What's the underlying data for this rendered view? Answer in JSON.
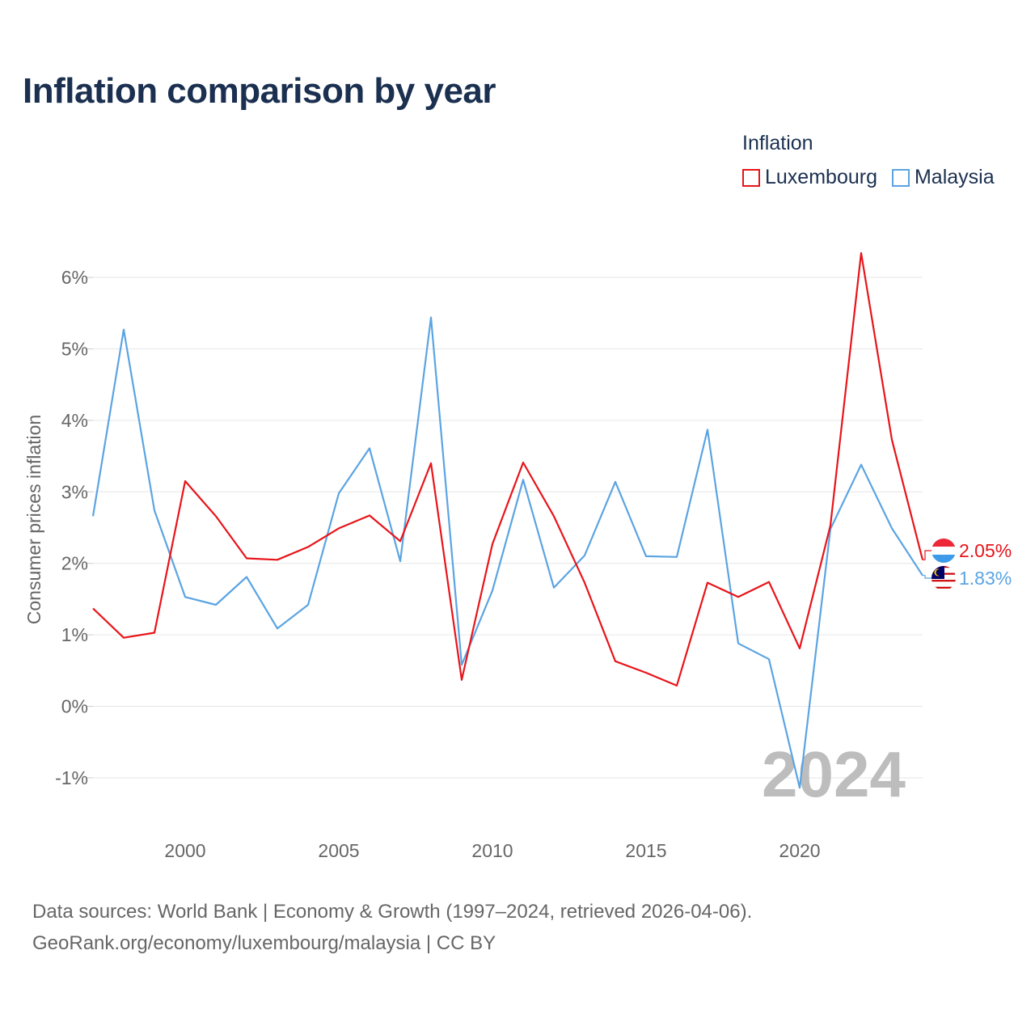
{
  "title": "Inflation comparison by year",
  "legend": {
    "title": "Inflation",
    "items": [
      {
        "name": "Luxembourg",
        "color": "#e8141a"
      },
      {
        "name": "Malaysia",
        "color": "#5ba4e2"
      }
    ]
  },
  "chart_data": {
    "type": "line",
    "title": "Inflation comparison by year",
    "xlabel": "",
    "ylabel": "Consumer prices inflation",
    "x": [
      1997,
      1998,
      1999,
      2000,
      2001,
      2002,
      2003,
      2004,
      2005,
      2006,
      2007,
      2008,
      2009,
      2010,
      2011,
      2012,
      2013,
      2014,
      2015,
      2016,
      2017,
      2018,
      2019,
      2020,
      2021,
      2022,
      2023,
      2024
    ],
    "xlim": [
      1997,
      2024
    ],
    "ylim": [
      -1.6,
      6.6
    ],
    "x_ticks": [
      2000,
      2005,
      2010,
      2015,
      2020
    ],
    "x_tick_labels": [
      "2000",
      "2005",
      "2010",
      "2015",
      "2020"
    ],
    "y_ticks": [
      -1,
      0,
      1,
      2,
      3,
      4,
      5,
      6
    ],
    "y_tick_labels": [
      "-1%",
      "0%",
      "1%",
      "2%",
      "3%",
      "4%",
      "5%",
      "6%"
    ],
    "grid": true,
    "watermark": "2024",
    "series": [
      {
        "name": "Luxembourg",
        "color": "#e8141a",
        "end_label": "2.05%",
        "values": [
          1.37,
          0.96,
          1.03,
          3.15,
          2.66,
          2.07,
          2.05,
          2.23,
          2.49,
          2.67,
          2.31,
          3.4,
          0.37,
          2.27,
          3.41,
          2.66,
          1.73,
          0.63,
          0.47,
          0.29,
          1.73,
          1.53,
          1.74,
          0.81,
          2.53,
          6.34,
          3.73,
          2.05
        ]
      },
      {
        "name": "Malaysia",
        "color": "#5ba4e2",
        "end_label": "1.83%",
        "values": [
          2.66,
          5.27,
          2.74,
          1.53,
          1.42,
          1.81,
          1.09,
          1.42,
          2.98,
          3.61,
          2.03,
          5.44,
          0.58,
          1.62,
          3.17,
          1.66,
          2.11,
          3.14,
          2.1,
          2.09,
          3.87,
          0.88,
          0.66,
          -1.14,
          2.48,
          3.38,
          2.49,
          1.83
        ]
      }
    ]
  },
  "footer": {
    "line1": "Data sources: World Bank | Economy & Growth (1997–2024, retrieved 2026-04-06).",
    "line2": "GeoRank.org/economy/luxembourg/malaysia | CC BY"
  }
}
